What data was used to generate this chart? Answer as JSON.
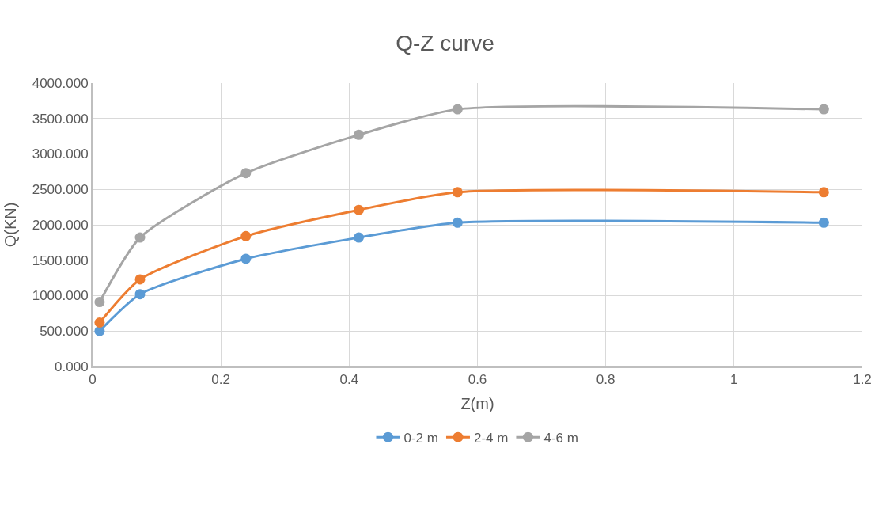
{
  "chart_data": {
    "type": "line",
    "title": "Q-Z curve",
    "xlabel": "Z(m)",
    "ylabel": "Q(KN)",
    "x": [
      0.011,
      0.074,
      0.239,
      0.415,
      0.569,
      1.14
    ],
    "series": [
      {
        "name": "0-2 m",
        "color": "#5b9bd5",
        "values": [
          500,
          1020,
          1520,
          1820,
          2030,
          2030
        ]
      },
      {
        "name": "2-4 m",
        "color": "#ed7d31",
        "values": [
          620,
          1230,
          1840,
          2210,
          2460,
          2460
        ]
      },
      {
        "name": "4-6 m",
        "color": "#a5a5a5",
        "values": [
          910,
          1820,
          2730,
          3270,
          3630,
          3630
        ]
      }
    ],
    "xlim": [
      0,
      1.2
    ],
    "xticks": [
      0,
      0.2,
      0.4,
      0.6,
      0.8,
      1,
      1.2
    ],
    "ylim": [
      0,
      4000
    ],
    "yticks": [
      {
        "value": 0,
        "label": "0.000"
      },
      {
        "value": 500,
        "label": "500.000"
      },
      {
        "value": 1000,
        "label": "1000.000"
      },
      {
        "value": 1500,
        "label": "1500.000"
      },
      {
        "value": 2000,
        "label": "2000.000"
      },
      {
        "value": 2500,
        "label": "2500.000"
      },
      {
        "value": 3000,
        "label": "3000.000"
      },
      {
        "value": 3500,
        "label": "3500.000"
      },
      {
        "value": 4000,
        "label": "4000.000"
      }
    ],
    "grid": true,
    "legend": "bottom",
    "marker": "circle",
    "line_style": "solid"
  }
}
